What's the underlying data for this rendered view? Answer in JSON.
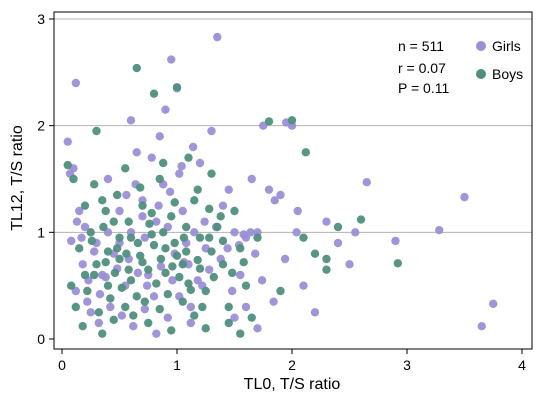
{
  "chart_data": {
    "type": "scatter",
    "xlabel": "TL0, T/S ratio",
    "ylabel": "TL12, T/S ratio",
    "xlim": [
      0,
      4
    ],
    "ylim": [
      0,
      3
    ],
    "xticks": [
      "0",
      "1",
      "2",
      "3",
      "4"
    ],
    "yticks": [
      "0",
      "1",
      "2",
      "3"
    ],
    "grid": "horizontal",
    "legend_position": "top-right",
    "annotations": [
      "n = 511",
      "r = 0.07",
      "P = 0.11"
    ],
    "series": [
      {
        "name": "Girls",
        "color": "#9b8fd6",
        "points": [
          [
            0.08,
            0.92
          ],
          [
            0.12,
            2.4
          ],
          [
            0.05,
            1.85
          ],
          [
            0.1,
            1.6
          ],
          [
            0.15,
            1.2
          ],
          [
            0.2,
            1.05
          ],
          [
            0.12,
            0.45
          ],
          [
            0.22,
            0.35
          ],
          [
            0.3,
            0.9
          ],
          [
            0.35,
            0.6
          ],
          [
            0.4,
            1.5
          ],
          [
            0.45,
            0.8
          ],
          [
            0.5,
            1.2
          ],
          [
            0.55,
            0.5
          ],
          [
            0.6,
            2.05
          ],
          [
            0.65,
            1.75
          ],
          [
            0.7,
            1.3
          ],
          [
            0.72,
            0.95
          ],
          [
            0.75,
            0.6
          ],
          [
            0.8,
            0.4
          ],
          [
            0.82,
            1.1
          ],
          [
            0.85,
            1.9
          ],
          [
            0.88,
            1.45
          ],
          [
            0.9,
            2.15
          ],
          [
            0.95,
            2.62
          ],
          [
            0.98,
            0.8
          ],
          [
            1.0,
            2.35
          ],
          [
            1.02,
            1.55
          ],
          [
            1.05,
            1.2
          ],
          [
            1.1,
            0.7
          ],
          [
            1.12,
            0.3
          ],
          [
            1.15,
            1.0
          ],
          [
            1.2,
            1.65
          ],
          [
            1.25,
            0.85
          ],
          [
            1.3,
            1.95
          ],
          [
            1.35,
            2.83
          ],
          [
            1.4,
            1.25
          ],
          [
            1.45,
            1.4
          ],
          [
            1.5,
            1.0
          ],
          [
            1.55,
            0.6
          ],
          [
            1.6,
            0.95
          ],
          [
            1.65,
            1.5
          ],
          [
            1.7,
            1.0
          ],
          [
            1.75,
            2.0
          ],
          [
            1.8,
            1.4
          ],
          [
            1.85,
            1.3
          ],
          [
            1.9,
            1.35
          ],
          [
            1.95,
            2.03
          ],
          [
            2.0,
            2.0
          ],
          [
            2.05,
            1.2
          ],
          [
            2.1,
            0.5
          ],
          [
            2.2,
            0.25
          ],
          [
            2.3,
            1.1
          ],
          [
            2.4,
            0.9
          ],
          [
            2.5,
            0.7
          ],
          [
            2.55,
            1.0
          ],
          [
            2.65,
            1.47
          ],
          [
            2.9,
            0.92
          ],
          [
            3.28,
            1.02
          ],
          [
            3.5,
            1.33
          ],
          [
            3.65,
            0.12
          ],
          [
            3.75,
            0.33
          ],
          [
            1.7,
            0.1
          ],
          [
            1.6,
            0.3
          ],
          [
            1.5,
            0.2
          ],
          [
            0.6,
            1.0
          ],
          [
            0.7,
            1.15
          ],
          [
            0.78,
            1.7
          ],
          [
            0.92,
            1.05
          ],
          [
            1.08,
            0.9
          ],
          [
            1.18,
            0.55
          ],
          [
            1.28,
            0.65
          ],
          [
            1.38,
            0.75
          ],
          [
            1.48,
            0.45
          ],
          [
            1.58,
            0.98
          ],
          [
            1.68,
            0.8
          ],
          [
            0.25,
            0.25
          ],
          [
            0.32,
            0.15
          ],
          [
            0.42,
            0.3
          ],
          [
            0.52,
            0.22
          ],
          [
            0.62,
            0.12
          ],
          [
            0.72,
            0.28
          ],
          [
            0.82,
            0.05
          ],
          [
            0.92,
            0.2
          ],
          [
            1.02,
            0.4
          ],
          [
            1.12,
            0.15
          ],
          [
            1.22,
            0.5
          ],
          [
            0.4,
            1.0
          ],
          [
            0.5,
            0.9
          ],
          [
            0.58,
            0.75
          ],
          [
            0.66,
            0.62
          ],
          [
            0.74,
            0.5
          ],
          [
            0.86,
            0.68
          ],
          [
            0.96,
            0.55
          ],
          [
            1.06,
            0.72
          ],
          [
            0.18,
            0.7
          ],
          [
            0.28,
            0.82
          ],
          [
            0.38,
            0.58
          ],
          [
            0.48,
            0.66
          ],
          [
            0.56,
            1.35
          ],
          [
            0.64,
            1.45
          ],
          [
            0.84,
            1.25
          ],
          [
            0.94,
            1.38
          ],
          [
            1.04,
            1.62
          ],
          [
            1.14,
            1.8
          ],
          [
            1.24,
            1.1
          ],
          [
            1.34,
            1.05
          ],
          [
            1.44,
            0.85
          ],
          [
            1.54,
            0.88
          ],
          [
            1.64,
            1.0
          ],
          [
            1.74,
            0.55
          ],
          [
            1.84,
            0.35
          ],
          [
            1.94,
            0.75
          ],
          [
            2.04,
            1.0
          ],
          [
            0.07,
            1.55
          ],
          [
            0.13,
            1.1
          ],
          [
            0.17,
            0.95
          ],
          [
            0.23,
            0.55
          ],
          [
            0.33,
            0.42
          ]
        ]
      },
      {
        "name": "Boys",
        "color": "#4f8f7e",
        "points": [
          [
            0.05,
            1.63
          ],
          [
            0.1,
            1.5
          ],
          [
            0.15,
            0.85
          ],
          [
            0.2,
            0.6
          ],
          [
            0.25,
            1.0
          ],
          [
            0.3,
            1.95
          ],
          [
            0.35,
            1.3
          ],
          [
            0.4,
            0.5
          ],
          [
            0.45,
            1.1
          ],
          [
            0.5,
            0.75
          ],
          [
            0.55,
            1.6
          ],
          [
            0.6,
            0.95
          ],
          [
            0.65,
            2.54
          ],
          [
            0.7,
            1.25
          ],
          [
            0.75,
            0.65
          ],
          [
            0.8,
            2.3
          ],
          [
            0.85,
            1.5
          ],
          [
            0.9,
            0.85
          ],
          [
            0.95,
            1.15
          ],
          [
            1.0,
            2.36
          ],
          [
            1.05,
            0.7
          ],
          [
            1.1,
            1.7
          ],
          [
            1.15,
            1.3
          ],
          [
            1.2,
            0.95
          ],
          [
            1.25,
            0.45
          ],
          [
            1.3,
            1.55
          ],
          [
            1.35,
            1.05
          ],
          [
            1.4,
            0.7
          ],
          [
            1.45,
            0.3
          ],
          [
            1.5,
            1.2
          ],
          [
            1.55,
            0.85
          ],
          [
            1.6,
            0.5
          ],
          [
            1.7,
            0.95
          ],
          [
            1.8,
            2.04
          ],
          [
            1.9,
            0.45
          ],
          [
            2.0,
            2.05
          ],
          [
            2.1,
            0.95
          ],
          [
            2.12,
            1.75
          ],
          [
            2.2,
            0.8
          ],
          [
            2.3,
            0.65
          ],
          [
            2.4,
            1.05
          ],
          [
            2.6,
            1.12
          ],
          [
            2.92,
            0.71
          ],
          [
            2.3,
            0.75
          ],
          [
            1.65,
            0.2
          ],
          [
            1.55,
            0.05
          ],
          [
            1.45,
            0.15
          ],
          [
            0.35,
            0.05
          ],
          [
            0.45,
            0.18
          ],
          [
            0.55,
            0.3
          ],
          [
            0.65,
            0.4
          ],
          [
            0.75,
            0.15
          ],
          [
            0.85,
            0.28
          ],
          [
            0.95,
            0.08
          ],
          [
            1.05,
            0.35
          ],
          [
            1.15,
            0.22
          ],
          [
            1.25,
            0.1
          ],
          [
            0.3,
            0.7
          ],
          [
            0.4,
            0.82
          ],
          [
            0.5,
            0.95
          ],
          [
            0.6,
            0.55
          ],
          [
            0.7,
            0.72
          ],
          [
            0.8,
            0.88
          ],
          [
            0.9,
            0.62
          ],
          [
            1.0,
            0.78
          ],
          [
            1.1,
            0.52
          ],
          [
            1.2,
            0.66
          ],
          [
            1.3,
            0.82
          ],
          [
            1.4,
            0.92
          ],
          [
            0.2,
            1.25
          ],
          [
            0.28,
            1.45
          ],
          [
            0.38,
            1.2
          ],
          [
            0.48,
            1.35
          ],
          [
            0.58,
            1.1
          ],
          [
            0.68,
            1.42
          ],
          [
            0.78,
            1.18
          ],
          [
            0.88,
            1.65
          ],
          [
            0.98,
            1.28
          ],
          [
            1.08,
            1.05
          ],
          [
            1.18,
            1.4
          ],
          [
            1.28,
            1.22
          ],
          [
            0.12,
            0.3
          ],
          [
            0.22,
            0.45
          ],
          [
            0.32,
            0.25
          ],
          [
            0.42,
            0.38
          ],
          [
            0.52,
            0.48
          ],
          [
            0.62,
            0.22
          ],
          [
            0.72,
            0.35
          ],
          [
            0.82,
            0.52
          ],
          [
            0.92,
            0.42
          ],
          [
            1.02,
            0.58
          ],
          [
            1.12,
            0.46
          ],
          [
            1.22,
            0.3
          ],
          [
            1.32,
            0.58
          ],
          [
            0.08,
            0.5
          ],
          [
            0.18,
            0.12
          ],
          [
            0.28,
            0.6
          ],
          [
            0.38,
            0.72
          ],
          [
            0.48,
            0.85
          ],
          [
            0.58,
            0.65
          ],
          [
            0.68,
            0.78
          ],
          [
            0.78,
            0.98
          ],
          [
            0.88,
            1.0
          ],
          [
            0.98,
            0.9
          ],
          [
            1.08,
            0.82
          ],
          [
            1.18,
            0.74
          ],
          [
            1.28,
            0.95
          ],
          [
            1.38,
            1.15
          ],
          [
            1.48,
            0.62
          ],
          [
            1.58,
            0.72
          ],
          [
            0.26,
            0.92
          ],
          [
            0.36,
            1.05
          ],
          [
            0.46,
            0.62
          ],
          [
            0.56,
            0.8
          ],
          [
            0.66,
            0.9
          ],
          [
            0.76,
            1.08
          ],
          [
            0.86,
            0.75
          ],
          [
            0.96,
            0.68
          ],
          [
            1.06,
            0.95
          ]
        ]
      }
    ]
  }
}
